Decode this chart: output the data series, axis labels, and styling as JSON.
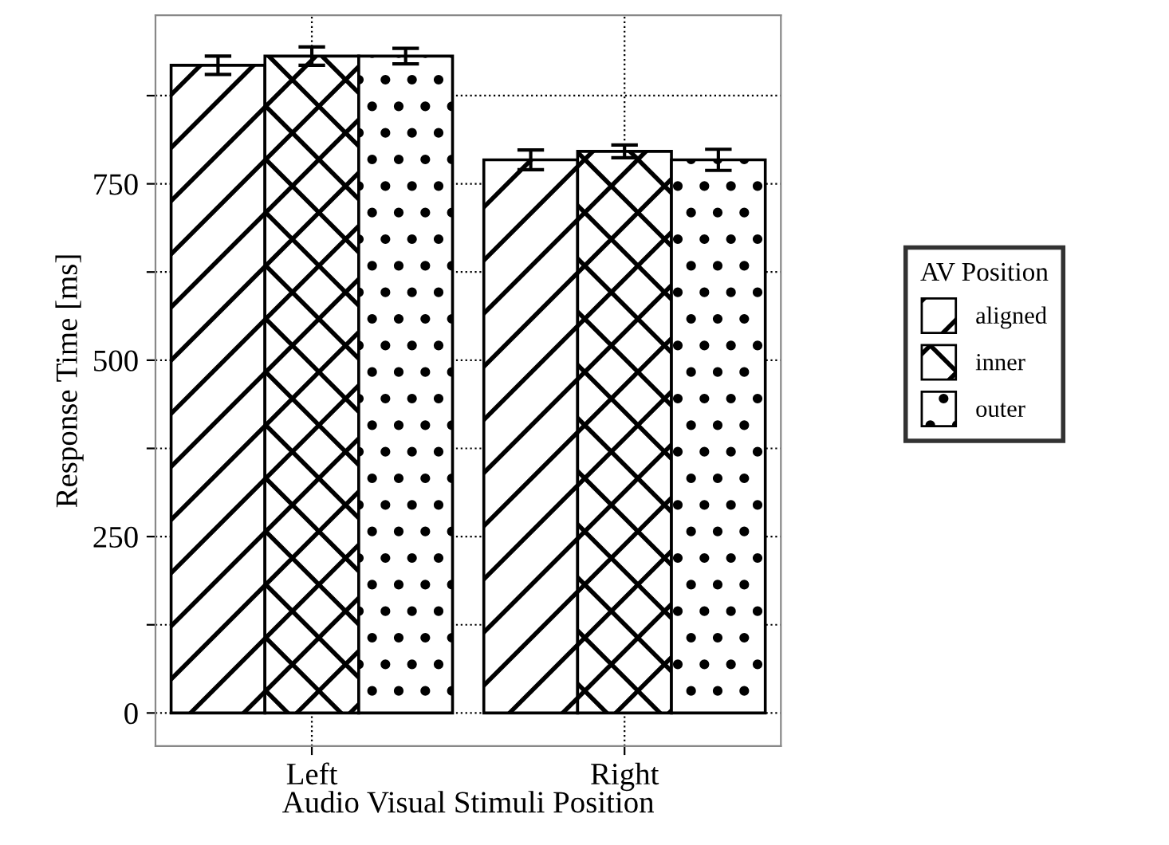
{
  "chart_data": {
    "type": "bar",
    "xlabel": "Audio Visual Stimuli Position",
    "ylabel": "Response Time [ms]",
    "legend_title": "AV Position",
    "categories": [
      "Left",
      "Right"
    ],
    "series": [
      {
        "name": "aligned",
        "color": "#000000",
        "values": [
          918,
          784
        ],
        "errors": [
          13,
          14
        ]
      },
      {
        "name": "inner",
        "color": "#000000",
        "values": [
          931,
          796
        ],
        "errors": [
          13,
          9
        ]
      },
      {
        "name": "outer",
        "color": "#000000",
        "values": [
          931,
          784
        ],
        "errors": [
          11,
          15
        ]
      }
    ],
    "ylim": [
      -47,
      989
    ],
    "yticks": [
      0,
      {
        "value": 125,
        "label": null
      },
      250,
      {
        "value": 375,
        "label": null
      },
      500,
      {
        "value": 625,
        "label": null
      },
      750,
      {
        "value": 875,
        "label": null
      }
    ],
    "grid": true,
    "legend": "right"
  }
}
